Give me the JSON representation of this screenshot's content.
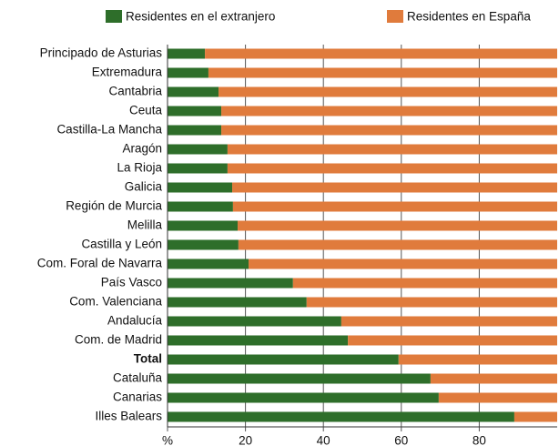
{
  "chart_data": {
    "type": "stacked_barh",
    "categories": [
      "Principado de Asturias",
      "Extremadura",
      "Cantabria",
      "Ceuta",
      "Castilla-La Mancha",
      "Aragón",
      "La Rioja",
      "Galicia",
      "Región de Murcia",
      "Melilla",
      "Castilla y León",
      "Com. Foral de Navarra",
      "País Vasco",
      "Com. Valenciana",
      "Andalucía",
      "Com. de Madrid",
      "Total",
      "Cataluña",
      "Canarias",
      "Illes Balears"
    ],
    "series": [
      {
        "name": "Residentes en el extranjero",
        "color": "#2e6e2a",
        "values": [
          9.6,
          10.5,
          13.1,
          13.8,
          13.8,
          15.4,
          15.4,
          16.6,
          16.8,
          18.0,
          18.2,
          20.8,
          32.2,
          35.7,
          44.6,
          46.3,
          59.3,
          67.5,
          69.6,
          89.0
        ]
      },
      {
        "name": "Residentes en España",
        "color": "#e07b3c",
        "values": [
          90.4,
          89.5,
          86.9,
          86.2,
          86.2,
          84.6,
          84.6,
          83.4,
          83.2,
          82.0,
          81.8,
          79.2,
          67.8,
          64.3,
          55.4,
          53.7,
          40.7,
          32.5,
          30.4,
          11.0
        ]
      }
    ],
    "xlim": [
      0,
      100
    ],
    "xticks": [
      {
        "value": 0,
        "label": "%"
      },
      20,
      40,
      60,
      80
    ],
    "grid": true
  }
}
